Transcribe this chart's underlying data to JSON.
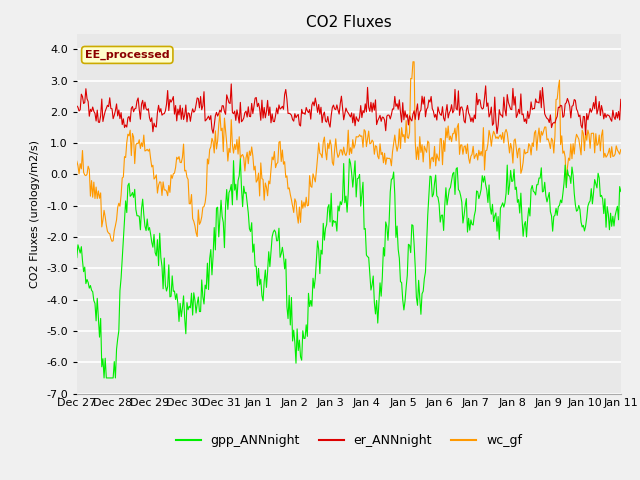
{
  "title": "CO2 Fluxes",
  "ylabel": "CO2 Fluxes (urology/m2/s)",
  "ylim": [
    -7.0,
    4.5
  ],
  "yticks": [
    -7.0,
    -6.0,
    -5.0,
    -4.0,
    -3.0,
    -2.0,
    -1.0,
    0.0,
    1.0,
    2.0,
    3.0,
    4.0
  ],
  "background_color": "#f0f0f0",
  "plot_bg_color": "#e8e8e8",
  "grid_color": "#ffffff",
  "annotation_text": "EE_processed",
  "annotation_color": "#8b0000",
  "annotation_bg": "#ffffcc",
  "annotation_border": "#ccaa00",
  "line_colors": {
    "gpp": "#00ee00",
    "er": "#dd0000",
    "wc": "#ff9900"
  },
  "legend_labels": [
    "gpp_ANNnight",
    "er_ANNnight",
    "wc_gf"
  ],
  "xtick_labels": [
    "Dec 27",
    "Dec 28",
    "Dec 29",
    "Dec 30",
    "Dec 31",
    "Jan 1",
    "Jan 2",
    "Jan 3",
    "Jan 4",
    "Jan 5",
    "Jan 6",
    "Jan 7",
    "Jan 8",
    "Jan 9",
    "Jan 10",
    "Jan 11"
  ],
  "title_fontsize": 11,
  "label_fontsize": 8,
  "tick_fontsize": 8,
  "legend_fontsize": 9
}
